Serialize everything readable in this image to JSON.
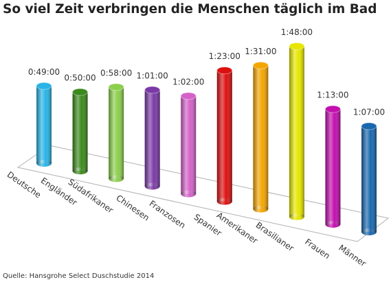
{
  "chart_data": {
    "type": "bar",
    "title": "So viel Zeit verbringen die Menschen täglich im Bad",
    "source": "Quelle: Hansgrohe Select Duschstudie 2014",
    "categories": [
      "Deutsche",
      "Engländer",
      "Südafrikaner",
      "Chinesen",
      "Franzosen",
      "Spanier",
      "Amerikaner",
      "Brasilianer",
      "Frauen",
      "Männer"
    ],
    "values": [
      49,
      50,
      58,
      61,
      62,
      83,
      91,
      108,
      73,
      67
    ],
    "value_labels": [
      "0:49:00",
      "0:50:00",
      "0:58:00",
      "1:01:00",
      "1:02:00",
      "1:23:00",
      "1:31:00",
      "1:48:00",
      "1:13:00",
      "1:07:00"
    ],
    "colors": [
      "#29b4e6",
      "#3b8a1c",
      "#8ccf4c",
      "#7a3aa6",
      "#d462c9",
      "#dd1010",
      "#f4a600",
      "#e6e600",
      "#c20fae",
      "#1a68ae"
    ]
  }
}
